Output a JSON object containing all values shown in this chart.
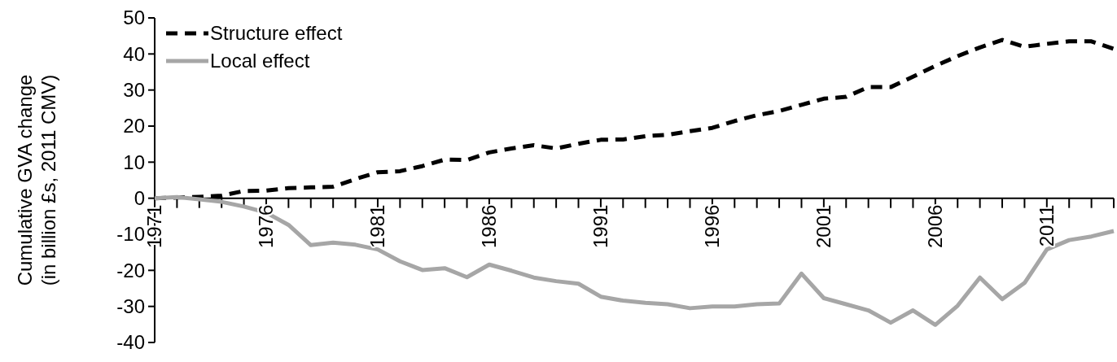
{
  "chart_data": {
    "type": "line",
    "ylabel": "Cumulative GVA change\n(in billion £s, 2011 CMV)",
    "x": [
      1971,
      1972,
      1973,
      1974,
      1975,
      1976,
      1977,
      1978,
      1979,
      1980,
      1981,
      1982,
      1983,
      1984,
      1985,
      1986,
      1987,
      1988,
      1989,
      1990,
      1991,
      1992,
      1993,
      1994,
      1995,
      1996,
      1997,
      1998,
      1999,
      2000,
      2001,
      2002,
      2003,
      2004,
      2005,
      2006,
      2007,
      2008,
      2009,
      2010,
      2011,
      2012,
      2013,
      2014
    ],
    "series": [
      {
        "name": "Structure effect",
        "color": "#000000",
        "line_style": "dashed",
        "values": [
          0,
          0.2,
          0.4,
          0.7,
          2,
          2.1,
          2.8,
          3,
          3.2,
          5.3,
          7.2,
          7.5,
          8.9,
          10.7,
          10.6,
          12.7,
          13.8,
          14.7,
          13.8,
          15.1,
          16.2,
          16.3,
          17.2,
          17.6,
          18.6,
          19.5,
          21.4,
          23,
          24.2,
          25.9,
          27.6,
          28.1,
          30.8,
          30.8,
          33.7,
          36.7,
          39.4,
          41.8,
          43.9,
          42,
          42.8,
          43.5,
          43.5,
          41.4
        ]
      },
      {
        "name": "Local effect",
        "color": "#a6a6a6",
        "line_style": "solid",
        "values": [
          0,
          0.3,
          -0.3,
          -1,
          -2.3,
          -4,
          -7.4,
          -13,
          -12.3,
          -12.9,
          -14.2,
          -17.5,
          -19.9,
          -19.4,
          -21.9,
          -18.4,
          -20.1,
          -22,
          -23,
          -23.7,
          -27.3,
          -28.4,
          -29,
          -29.4,
          -30.5,
          -30,
          -30,
          -29.4,
          -29.2,
          -20.9,
          -27.7,
          -29.4,
          -31.1,
          -34.5,
          -31.1,
          -35.1,
          -29.8,
          -22,
          -28,
          -23.5,
          -14.2,
          -11.6,
          -10.6,
          -9.1
        ]
      }
    ],
    "xlim": [
      1971,
      2014
    ],
    "xticks": [
      1971,
      {
        "value": 1972,
        "label": null
      },
      {
        "value": 1973,
        "label": null
      },
      {
        "value": 1974,
        "label": null
      },
      {
        "value": 1975,
        "label": null
      },
      1976,
      {
        "value": 1977,
        "label": null
      },
      {
        "value": 1978,
        "label": null
      },
      {
        "value": 1979,
        "label": null
      },
      {
        "value": 1980,
        "label": null
      },
      1981,
      {
        "value": 1982,
        "label": null
      },
      {
        "value": 1983,
        "label": null
      },
      {
        "value": 1984,
        "label": null
      },
      {
        "value": 1985,
        "label": null
      },
      1986,
      {
        "value": 1987,
        "label": null
      },
      {
        "value": 1988,
        "label": null
      },
      {
        "value": 1989,
        "label": null
      },
      {
        "value": 1990,
        "label": null
      },
      1991,
      {
        "value": 1992,
        "label": null
      },
      {
        "value": 1993,
        "label": null
      },
      {
        "value": 1994,
        "label": null
      },
      {
        "value": 1995,
        "label": null
      },
      1996,
      {
        "value": 1997,
        "label": null
      },
      {
        "value": 1998,
        "label": null
      },
      {
        "value": 1999,
        "label": null
      },
      {
        "value": 2000,
        "label": null
      },
      2001,
      {
        "value": 2002,
        "label": null
      },
      {
        "value": 2003,
        "label": null
      },
      {
        "value": 2004,
        "label": null
      },
      {
        "value": 2005,
        "label": null
      },
      2006,
      {
        "value": 2007,
        "label": null
      },
      {
        "value": 2008,
        "label": null
      },
      {
        "value": 2009,
        "label": null
      },
      {
        "value": 2010,
        "label": null
      },
      2011,
      {
        "value": 2012,
        "label": null
      },
      {
        "value": 2013,
        "label": null
      },
      {
        "value": 2014,
        "label": null
      }
    ],
    "ylim": [
      -40,
      50
    ],
    "yticks": [
      -40,
      -30,
      -20,
      -10,
      0,
      10,
      20,
      30,
      40,
      50
    ],
    "grid": false,
    "legend": "top left",
    "marker": "none"
  }
}
